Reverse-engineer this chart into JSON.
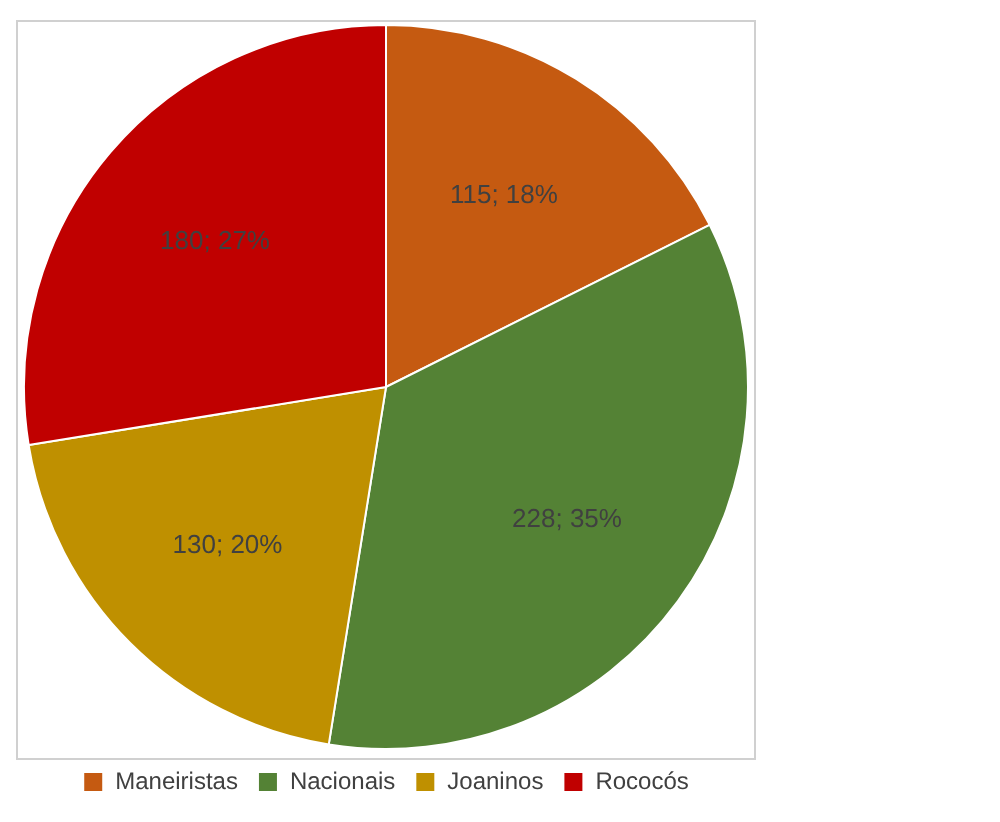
{
  "chart_data": {
    "type": "pie",
    "categories": [
      "Maneiristas",
      "Nacionais",
      "Joaninos",
      "Rococós"
    ],
    "values": [
      115,
      228,
      130,
      180
    ],
    "colors": [
      "#c55a11",
      "#548235",
      "#bf9000",
      "#c00000"
    ],
    "value_labels": [
      "115; 18%",
      "228; 35%",
      "130; 20%",
      "180; 27%"
    ],
    "legend": "bottom"
  }
}
